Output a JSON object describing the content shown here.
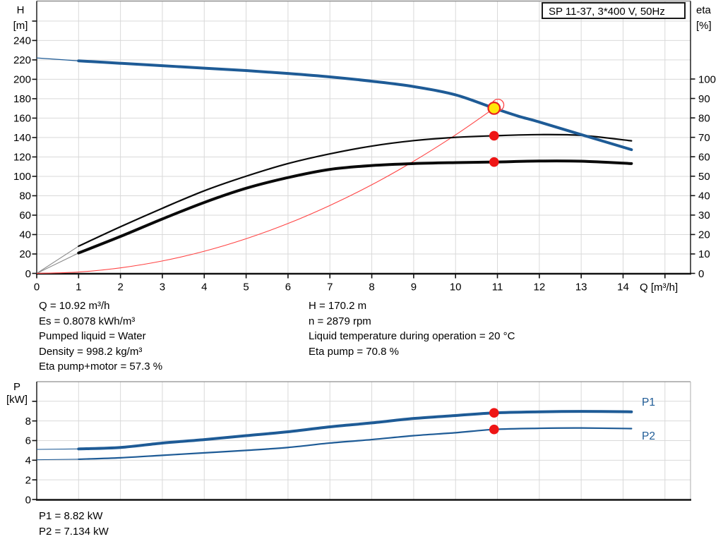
{
  "title": "SP 11-37, 3*400 V, 50Hz",
  "colors": {
    "curve_blue": "#1e5b96",
    "curve_black": "#0a0a0a",
    "system_red": "#ff4444",
    "dot_red": "#ee1515",
    "duty_yellow": "#ffe60a",
    "duty_ring_red": "#e82020",
    "grid": "#d9d9d9",
    "frame_gray": "#8f8f8f",
    "axis_black": "#111111",
    "extension_gray": "#8a8a8a"
  },
  "top_chart": {
    "y_left_label": [
      "H",
      "[m]"
    ],
    "y_right_label": [
      "eta",
      "[%]"
    ],
    "x_label": "Q [m³/h]"
  },
  "bottom_chart": {
    "y_left_label": [
      "P",
      "[kW]"
    ],
    "series_labels": [
      "P1",
      "P2"
    ]
  },
  "conditions": {
    "left": [
      "Q = 10.92 m³/h",
      "Es = 0.8078 kWh/m³",
      "Pumped liquid = Water",
      "Density = 998.2 kg/m³",
      "Eta pump+motor = 57.3 %"
    ],
    "right": [
      "H = 170.2 m",
      "n = 2879 rpm",
      "Liquid temperature during operation = 20 °C",
      "Eta pump = 70.8 %"
    ]
  },
  "power_readout": [
    "P1 = 8.82 kW",
    "P2 = 7.134 kW"
  ],
  "chart_data": [
    {
      "id": "head-and-efficiency",
      "type": "line",
      "title": "SP 11-37, 3*400 V, 50Hz",
      "xlabel": "Q [m³/h]",
      "xlim": [
        0,
        15.6
      ],
      "x_ticks": [
        0,
        1,
        2,
        3,
        4,
        5,
        6,
        7,
        8,
        9,
        10,
        11,
        12,
        13,
        14
      ],
      "ylabel": "H [m]",
      "ylim": [
        0,
        281
      ],
      "y_ticks": [
        0,
        20,
        40,
        60,
        80,
        100,
        120,
        140,
        160,
        180,
        200,
        220,
        240
      ],
      "y2label": "eta [%]",
      "y2lim": [
        0,
        102.5
      ],
      "y2_ticks": [
        0,
        10,
        20,
        30,
        40,
        50,
        60,
        70,
        80,
        90,
        100
      ],
      "grid": true,
      "series": [
        {
          "name": "head",
          "yaxis": "H",
          "thin_until": 1,
          "points": [
            [
              0,
              222
            ],
            [
              1,
              219
            ],
            [
              2,
              216.5
            ],
            [
              3,
              214
            ],
            [
              4,
              211.5
            ],
            [
              5,
              209
            ],
            [
              6,
              206
            ],
            [
              7,
              202.5
            ],
            [
              8,
              198
            ],
            [
              9,
              192.5
            ],
            [
              10,
              184
            ],
            [
              10.92,
              170.2
            ],
            [
              11.5,
              162
            ],
            [
              12,
              156
            ],
            [
              13,
              143
            ],
            [
              14.2,
              127.5
            ]
          ]
        },
        {
          "name": "eta-pump",
          "yaxis": "eta",
          "points": [
            [
              1,
              14
            ],
            [
              2,
              24
            ],
            [
              3,
              33.5
            ],
            [
              4,
              42.5
            ],
            [
              5,
              50
            ],
            [
              6,
              56.5
            ],
            [
              7,
              61.5
            ],
            [
              8,
              65.5
            ],
            [
              9,
              68.3
            ],
            [
              10,
              70
            ],
            [
              10.92,
              70.8
            ],
            [
              12,
              71.4
            ],
            [
              13,
              71
            ],
            [
              14.2,
              68.2
            ]
          ]
        },
        {
          "name": "eta-pump-motor",
          "yaxis": "eta",
          "points": [
            [
              1,
              10.5
            ],
            [
              2,
              19
            ],
            [
              3,
              28
            ],
            [
              4,
              36.5
            ],
            [
              5,
              43.8
            ],
            [
              6,
              49.3
            ],
            [
              7,
              53.5
            ],
            [
              8,
              55.5
            ],
            [
              9,
              56.5
            ],
            [
              10,
              57
            ],
            [
              10.92,
              57.3
            ],
            [
              12,
              57.8
            ],
            [
              13,
              57.7
            ],
            [
              14.2,
              56.5
            ]
          ]
        },
        {
          "name": "system-curve",
          "yaxis": "H",
          "points": [
            [
              0,
              0
            ],
            [
              1,
              1.4
            ],
            [
              2,
              5.7
            ],
            [
              3,
              12.8
            ],
            [
              4,
              22.8
            ],
            [
              5,
              35.7
            ],
            [
              6,
              51.4
            ],
            [
              7,
              70
            ],
            [
              8,
              91.3
            ],
            [
              9,
              115.6
            ],
            [
              10,
              142.7
            ],
            [
              10.92,
              170.2
            ]
          ]
        }
      ],
      "extension_lines": [
        {
          "yaxis": "eta",
          "from": [
            0,
            0
          ],
          "to": [
            1,
            14
          ]
        },
        {
          "yaxis": "eta",
          "from": [
            0,
            0
          ],
          "to": [
            1,
            10.5
          ]
        }
      ],
      "markers": {
        "duty_point": {
          "q": 10.92,
          "H": 170.2
        },
        "dots": [
          {
            "q": 10.92,
            "eta": 70.8
          },
          {
            "q": 10.92,
            "eta": 57.3
          }
        ]
      }
    },
    {
      "id": "power",
      "type": "line",
      "xlim": [
        0,
        15.6
      ],
      "ylabel": "P [kW]",
      "ylim": [
        0,
        12
      ],
      "y_ticks": [
        0,
        2,
        4,
        6,
        8
      ],
      "grid": true,
      "series": [
        {
          "name": "P1",
          "thin_until": 1,
          "points": [
            [
              0,
              5.1
            ],
            [
              1,
              5.15
            ],
            [
              2,
              5.3
            ],
            [
              3,
              5.75
            ],
            [
              4,
              6.1
            ],
            [
              5,
              6.5
            ],
            [
              6,
              6.9
            ],
            [
              7,
              7.4
            ],
            [
              8,
              7.8
            ],
            [
              9,
              8.25
            ],
            [
              10,
              8.55
            ],
            [
              10.92,
              8.82
            ],
            [
              12,
              8.93
            ],
            [
              13,
              8.97
            ],
            [
              14.2,
              8.93
            ]
          ]
        },
        {
          "name": "P2",
          "thin_until": 1,
          "points": [
            [
              0,
              4.05
            ],
            [
              1,
              4.1
            ],
            [
              2,
              4.25
            ],
            [
              3,
              4.5
            ],
            [
              4,
              4.75
            ],
            [
              5,
              5.0
            ],
            [
              6,
              5.3
            ],
            [
              7,
              5.75
            ],
            [
              8,
              6.1
            ],
            [
              9,
              6.5
            ],
            [
              10,
              6.8
            ],
            [
              10.92,
              7.134
            ],
            [
              12,
              7.25
            ],
            [
              13,
              7.28
            ],
            [
              14.2,
              7.22
            ]
          ]
        }
      ],
      "markers": {
        "dots": [
          {
            "q": 10.92,
            "P": 8.82
          },
          {
            "q": 10.92,
            "P": 7.134
          }
        ]
      }
    }
  ]
}
